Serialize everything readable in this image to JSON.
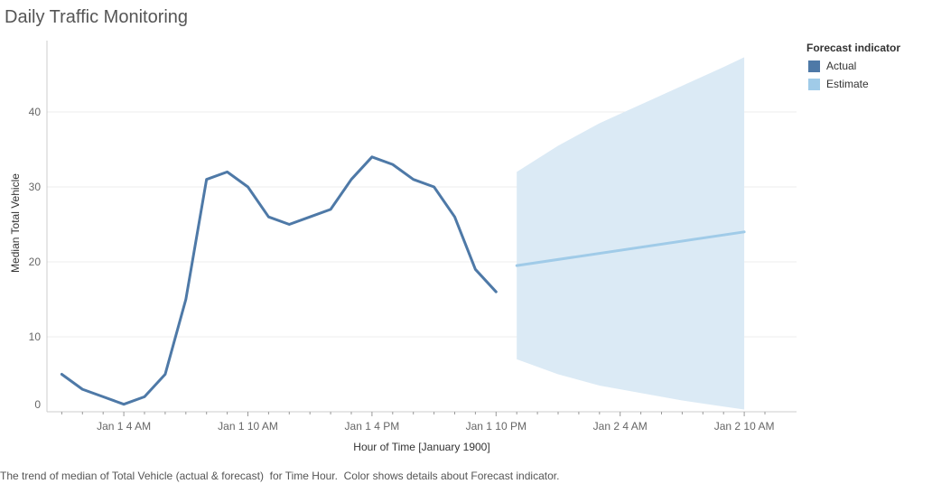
{
  "title": "Daily Traffic Monitoring",
  "caption": "The trend of median of Total Vehicle (actual & forecast)  for Time Hour.  Color shows details about Forecast indicator.",
  "colors": {
    "actual": "#4e79a7",
    "estimate": "#a0cbe8",
    "band": "#dbeaf5",
    "grid": "#eeeeee",
    "axis": "#cccccc",
    "tick_text": "#666666"
  },
  "chart_data": {
    "type": "line",
    "xlabel": "Hour of Time [January 1900]",
    "ylabel": "Median Total Vehicle",
    "ylim": [
      0,
      48
    ],
    "yticks": [
      0,
      10,
      20,
      30,
      40
    ],
    "x_unit": "hours since Jan 1 12 AM",
    "xlim": [
      0,
      35
    ],
    "xticks": [
      {
        "hour": 4,
        "label": "Jan 1 4 AM"
      },
      {
        "hour": 10,
        "label": "Jan 1 10 AM"
      },
      {
        "hour": 16,
        "label": "Jan 1 4 PM"
      },
      {
        "hour": 22,
        "label": "Jan 1 10 PM"
      },
      {
        "hour": 28,
        "label": "Jan 2 4 AM"
      },
      {
        "hour": 34,
        "label": "Jan 2 10 AM"
      }
    ],
    "legend": {
      "title": "Forecast indicator",
      "placement": "top-right",
      "items": [
        "Actual",
        "Estimate"
      ]
    },
    "series": [
      {
        "name": "Actual",
        "x": [
          1,
          2,
          3,
          4,
          5,
          6,
          7,
          8,
          9,
          10,
          11,
          12,
          13,
          14,
          15,
          16,
          17,
          18,
          19,
          20,
          21,
          22
        ],
        "values": [
          5,
          3,
          2,
          1,
          2,
          5,
          15,
          31,
          32,
          30,
          26,
          25,
          26,
          27,
          31,
          34,
          33,
          31,
          30,
          26,
          19,
          16
        ]
      },
      {
        "name": "Estimate",
        "x": [
          23,
          34
        ],
        "values": [
          19.5,
          24
        ]
      }
    ],
    "forecast_band": {
      "x": [
        23,
        25,
        27,
        29,
        31,
        33,
        34
      ],
      "upper": [
        32,
        35.5,
        38.5,
        41,
        43.5,
        46,
        47.3
      ],
      "lower": [
        7,
        5,
        3.5,
        2.5,
        1.5,
        0.7,
        0.3
      ]
    }
  }
}
